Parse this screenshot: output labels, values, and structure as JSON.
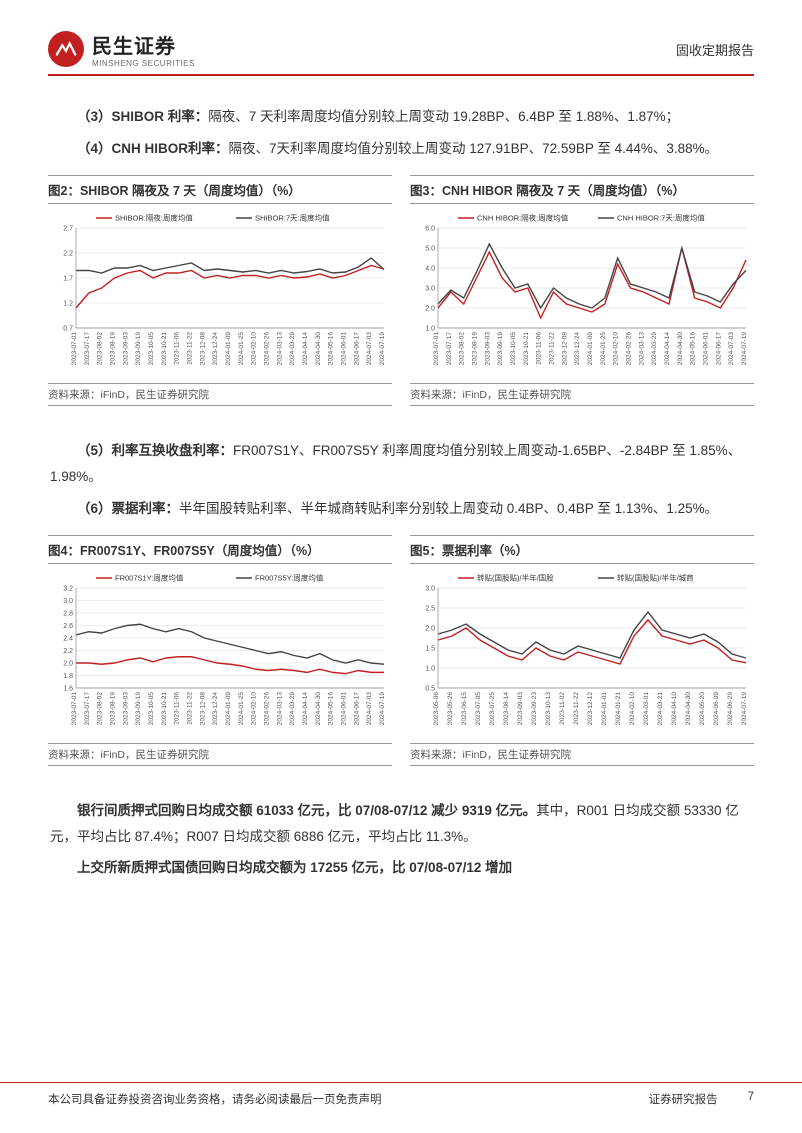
{
  "header": {
    "logo_cn": "民生证券",
    "logo_en": "MINSHENG SECURITIES",
    "right": "固收定期报告"
  },
  "paragraphs": {
    "p1_bold": "（3）SHIBOR 利率：",
    "p1_text": "隔夜、7 天利率周度均值分别较上周变动 19.28BP、6.4BP 至 1.88%、1.87%；",
    "p2_bold": "（4）CNH HIBOR利率：",
    "p2_text": "隔夜、7天利率周度均值分别较上周变动 127.91BP、72.59BP 至 4.44%、3.88%。",
    "p3_bold": "（5）利率互换收盘利率：",
    "p3_text": "FR007S1Y、FR007S5Y 利率周度均值分别较上周变动-1.65BP、-2.84BP 至 1.85%、1.98%。",
    "p4_bold": "（6）票据利率：",
    "p4_text": "半年国股转贴利率、半年城商转贴利率分别较上周变动 0.4BP、0.4BP 至 1.13%、1.25%。",
    "p5_bold": "银行间质押式回购日均成交额 61033 亿元，比 07/08-07/12 减少 9319 亿元。",
    "p5_text": "其中，R001 日均成交额 53330 亿元，平均占比 87.4%；R007 日均成交额 6886 亿元，平均占比 11.3%。",
    "p6_bold": "上交所新质押式国债回购日均成交额为 17255 亿元，比 07/08-07/12 增加"
  },
  "charts": {
    "xlabels": [
      "2023-07-01",
      "2023-07-17",
      "2023-08-02",
      "2023-08-19",
      "2023-09-03",
      "2023-09-19",
      "2023-10-05",
      "2023-10-21",
      "2023-11-06",
      "2023-11-22",
      "2023-12-08",
      "2023-12-24",
      "2024-01-09",
      "2024-01-25",
      "2024-02-10",
      "2024-02-26",
      "2024-03-13",
      "2024-03-29",
      "2024-04-14",
      "2024-04-30",
      "2024-05-16",
      "2024-06-01",
      "2024-06-17",
      "2024-07-03",
      "2024-07-19"
    ],
    "xlabels5": [
      "2023-05-06",
      "2023-05-26",
      "2023-06-15",
      "2023-07-05",
      "2023-07-25",
      "2023-08-14",
      "2023-09-03",
      "2023-09-23",
      "2023-10-13",
      "2023-11-02",
      "2023-11-22",
      "2023-12-12",
      "2024-01-01",
      "2024-01-21",
      "2024-02-10",
      "2024-03-01",
      "2024-03-21",
      "2024-04-10",
      "2024-04-30",
      "2024-05-20",
      "2024-06-09",
      "2024-06-29",
      "2024-07-19"
    ],
    "chart2": {
      "title": "图2：SHIBOR 隔夜及 7 天（周度均值）（%）",
      "legend": [
        "SHIBOR:隔夜:周度均值",
        "SHIBOR:7天:周度均值"
      ],
      "colors": [
        "#c22020",
        "#444444"
      ],
      "ylim": [
        0.7,
        2.7
      ],
      "yticks": [
        0.7,
        1.2,
        1.7,
        2.2,
        2.7
      ],
      "s1": [
        1.1,
        1.4,
        1.5,
        1.7,
        1.8,
        1.85,
        1.7,
        1.8,
        1.8,
        1.85,
        1.7,
        1.75,
        1.7,
        1.75,
        1.75,
        1.7,
        1.75,
        1.7,
        1.72,
        1.78,
        1.7,
        1.75,
        1.85,
        1.95,
        1.88
      ],
      "s2": [
        1.85,
        1.85,
        1.8,
        1.9,
        1.9,
        1.95,
        1.85,
        1.9,
        1.95,
        2.0,
        1.85,
        1.88,
        1.85,
        1.82,
        1.85,
        1.8,
        1.85,
        1.8,
        1.83,
        1.88,
        1.8,
        1.82,
        1.92,
        2.1,
        1.87
      ],
      "source": "资料来源：iFinD，民生证券研究院"
    },
    "chart3": {
      "title": "图3：CNH HIBOR 隔夜及 7 天（周度均值）（%）",
      "legend": [
        "CNH HIBOR:隔夜:周度均值",
        "CNH HIBOR:7天:周度均值"
      ],
      "colors": [
        "#c22020",
        "#444444"
      ],
      "ylim": [
        1.0,
        6.0
      ],
      "yticks": [
        1.0,
        2.0,
        3.0,
        4.0,
        5.0,
        6.0
      ],
      "s1": [
        2.0,
        2.8,
        2.2,
        3.5,
        4.8,
        3.5,
        2.8,
        3.0,
        1.5,
        2.8,
        2.2,
        2.0,
        1.8,
        2.2,
        4.2,
        3.0,
        2.8,
        2.5,
        2.2,
        5.0,
        2.5,
        2.3,
        2.0,
        3.0,
        4.4
      ],
      "s2": [
        2.2,
        2.9,
        2.5,
        3.8,
        5.2,
        4.0,
        3.0,
        3.2,
        2.0,
        3.0,
        2.5,
        2.2,
        2.0,
        2.5,
        4.5,
        3.2,
        3.0,
        2.8,
        2.5,
        5.0,
        2.8,
        2.6,
        2.3,
        3.2,
        3.88
      ],
      "source": "资料来源：iFinD，民生证券研究院"
    },
    "chart4": {
      "title": "图4：FR007S1Y、FR007S5Y（周度均值）（%）",
      "legend": [
        "FR007S1Y:周度均值",
        "FR007S5Y:周度均值"
      ],
      "colors": [
        "#c22020",
        "#444444"
      ],
      "ylim": [
        1.6,
        3.2
      ],
      "yticks": [
        1.6,
        1.8,
        2.0,
        2.2,
        2.4,
        2.6,
        2.8,
        3.0,
        3.2
      ],
      "s1": [
        2.0,
        2.0,
        1.98,
        2.0,
        2.05,
        2.08,
        2.02,
        2.08,
        2.1,
        2.1,
        2.05,
        2.0,
        1.98,
        1.95,
        1.9,
        1.88,
        1.9,
        1.88,
        1.85,
        1.9,
        1.85,
        1.83,
        1.88,
        1.85,
        1.85
      ],
      "s2": [
        2.45,
        2.5,
        2.48,
        2.55,
        2.6,
        2.62,
        2.55,
        2.5,
        2.55,
        2.5,
        2.4,
        2.35,
        2.3,
        2.25,
        2.2,
        2.15,
        2.18,
        2.12,
        2.08,
        2.15,
        2.05,
        2.0,
        2.05,
        2.0,
        1.98
      ],
      "source": "资料来源：iFinD，民生证券研究院"
    },
    "chart5": {
      "title": "图5：票据利率（%）",
      "legend": [
        "转贴(国股贴)/半年/国股",
        "转贴(国股贴)/半年/城商"
      ],
      "colors": [
        "#c22020",
        "#444444"
      ],
      "ylim": [
        0.5,
        3.0
      ],
      "yticks": [
        0.5,
        1.0,
        1.5,
        2.0,
        2.5,
        3.0
      ],
      "s1": [
        1.7,
        1.8,
        2.0,
        1.7,
        1.5,
        1.3,
        1.2,
        1.5,
        1.3,
        1.2,
        1.4,
        1.3,
        1.2,
        1.1,
        1.8,
        2.2,
        1.8,
        1.7,
        1.6,
        1.7,
        1.5,
        1.2,
        1.13
      ],
      "s2": [
        1.85,
        1.95,
        2.1,
        1.85,
        1.65,
        1.45,
        1.35,
        1.65,
        1.45,
        1.35,
        1.55,
        1.45,
        1.35,
        1.25,
        1.95,
        2.4,
        1.95,
        1.85,
        1.75,
        1.85,
        1.65,
        1.35,
        1.25
      ],
      "source": "资料来源：iFinD，民生证券研究院"
    }
  },
  "footer": {
    "left": "本公司具备证券投资咨询业务资格，请务必阅读最后一页免责声明",
    "right1": "证券研究报告",
    "right2": "7"
  },
  "style": {
    "brand_color": "#c22020",
    "grid_color": "#d8d8d8",
    "text_color": "#333333",
    "axis_color": "#888888",
    "tick_fontsize": 7
  }
}
